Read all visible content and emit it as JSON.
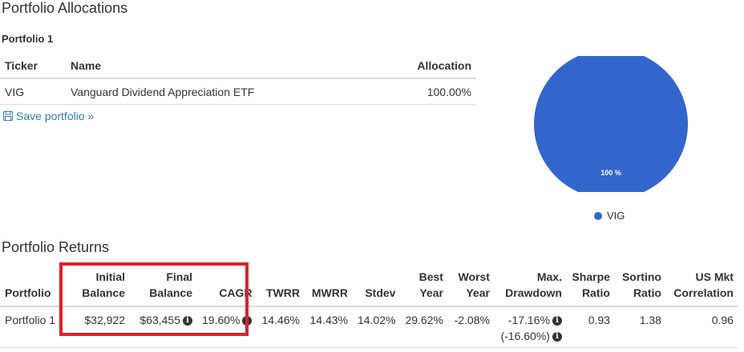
{
  "allocations": {
    "title": "Portfolio Allocations",
    "portfolio_name": "Portfolio 1",
    "columns": {
      "ticker": "Ticker",
      "name": "Name",
      "allocation": "Allocation"
    },
    "rows": [
      {
        "ticker": "VIG",
        "name": "Vanguard Dividend Appreciation ETF",
        "allocation": "100.00%"
      }
    ],
    "save_label": "Save portfolio »",
    "save_icon": "floppy-disk-icon"
  },
  "chart_data": {
    "type": "pie",
    "categories": [
      "VIG"
    ],
    "values": [
      100
    ],
    "slice_labels": [
      "100 %"
    ],
    "colors": [
      "#3366cc"
    ],
    "legend": {
      "placement": "bottom",
      "entries": [
        "VIG"
      ]
    }
  },
  "returns": {
    "title": "Portfolio Returns",
    "columns": {
      "portfolio": "Portfolio",
      "initial_balance": [
        "Initial",
        "Balance"
      ],
      "final_balance": [
        "Final",
        "Balance"
      ],
      "cagr": "CAGR",
      "twrr": "TWRR",
      "mwrr": "MWRR",
      "stdev": "Stdev",
      "best_year": [
        "Best",
        "Year"
      ],
      "worst_year": [
        "Worst",
        "Year"
      ],
      "max_drawdown": [
        "Max.",
        "Drawdown"
      ],
      "sharpe": [
        "Sharpe",
        "Ratio"
      ],
      "sortino": [
        "Sortino",
        "Ratio"
      ],
      "us_mkt_corr": [
        "US Mkt",
        "Correlation"
      ]
    },
    "rows": [
      {
        "portfolio": "Portfolio 1",
        "initial_balance": "$32,922",
        "final_balance": "$63,455",
        "cagr": "19.60%",
        "twrr": "14.46%",
        "mwrr": "14.43%",
        "stdev": "14.02%",
        "best_year": "29.62%",
        "worst_year": "-2.08%",
        "max_drawdown": "-17.16%",
        "max_drawdown_alt": "(-16.60%)",
        "sharpe": "0.93",
        "sortino": "1.38",
        "us_mkt_corr": "0.96"
      }
    ],
    "info_icon": "info-circle-icon",
    "highlight_color": "#e0202a"
  }
}
